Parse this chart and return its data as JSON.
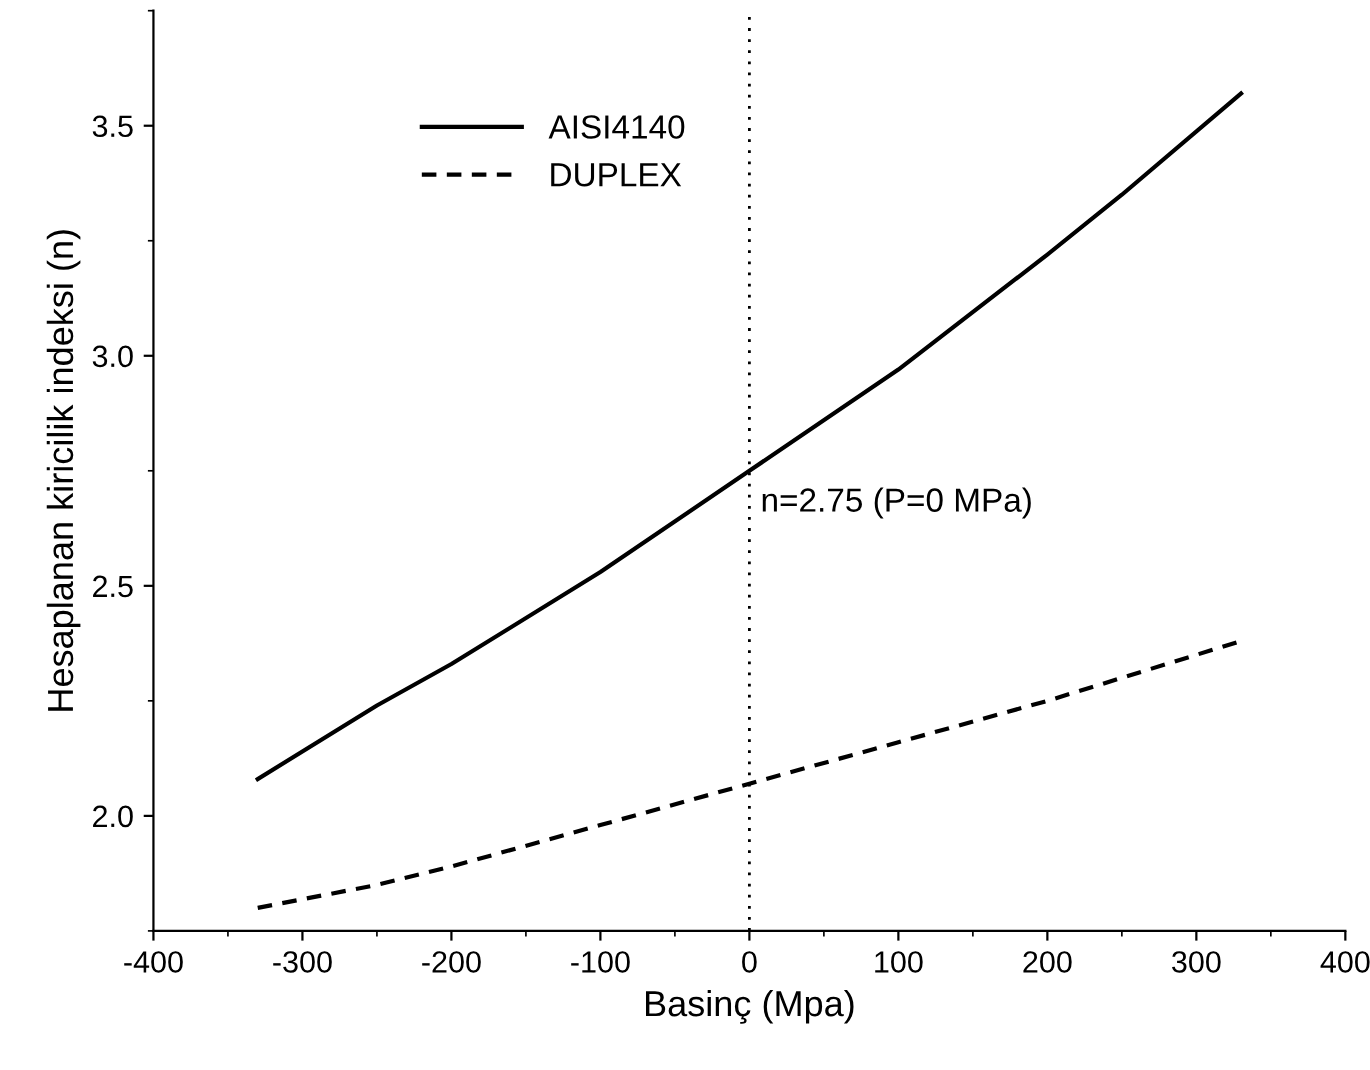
{
  "chart_data": {
    "type": "line",
    "xlabel": "Basinç (Mpa)",
    "ylabel": "Hesaplanan kiricilik indeksi (n)",
    "xlim": [
      -400,
      400
    ],
    "xticks": [
      -400,
      -300,
      -200,
      -100,
      0,
      100,
      200,
      300,
      400
    ],
    "ylim": [
      1.75,
      3.75
    ],
    "yticks": [
      {
        "value": 2,
        "label": "2.0"
      },
      2.5,
      {
        "value": 3,
        "label": "3.0"
      },
      3.5
    ],
    "series": [
      {
        "name": "AISI4140",
        "color": "#000000",
        "line_style": "solid",
        "x": [
          -330,
          -250,
          -200,
          -100,
          0,
          100,
          200,
          250,
          330
        ],
        "values": [
          2.08,
          2.24,
          2.33,
          2.53,
          2.75,
          2.97,
          3.22,
          3.35,
          3.57
        ]
      },
      {
        "name": "DUPLEX",
        "color": "#000000",
        "line_style": "dashed",
        "x": [
          -330,
          -250,
          -200,
          -100,
          0,
          100,
          200,
          250,
          330
        ],
        "values": [
          1.8,
          1.85,
          1.89,
          1.98,
          2.07,
          2.16,
          2.25,
          2.3,
          2.38
        ]
      }
    ],
    "ref_lines": [
      {
        "axis": "x",
        "value": 0,
        "line_style": "dotted",
        "color": "#000000"
      }
    ],
    "annotations": [
      {
        "text": "n=2.75 (P=0 MPa)",
        "x": 0,
        "y": 2.75
      }
    ],
    "legend": "top left",
    "grid": false
  }
}
